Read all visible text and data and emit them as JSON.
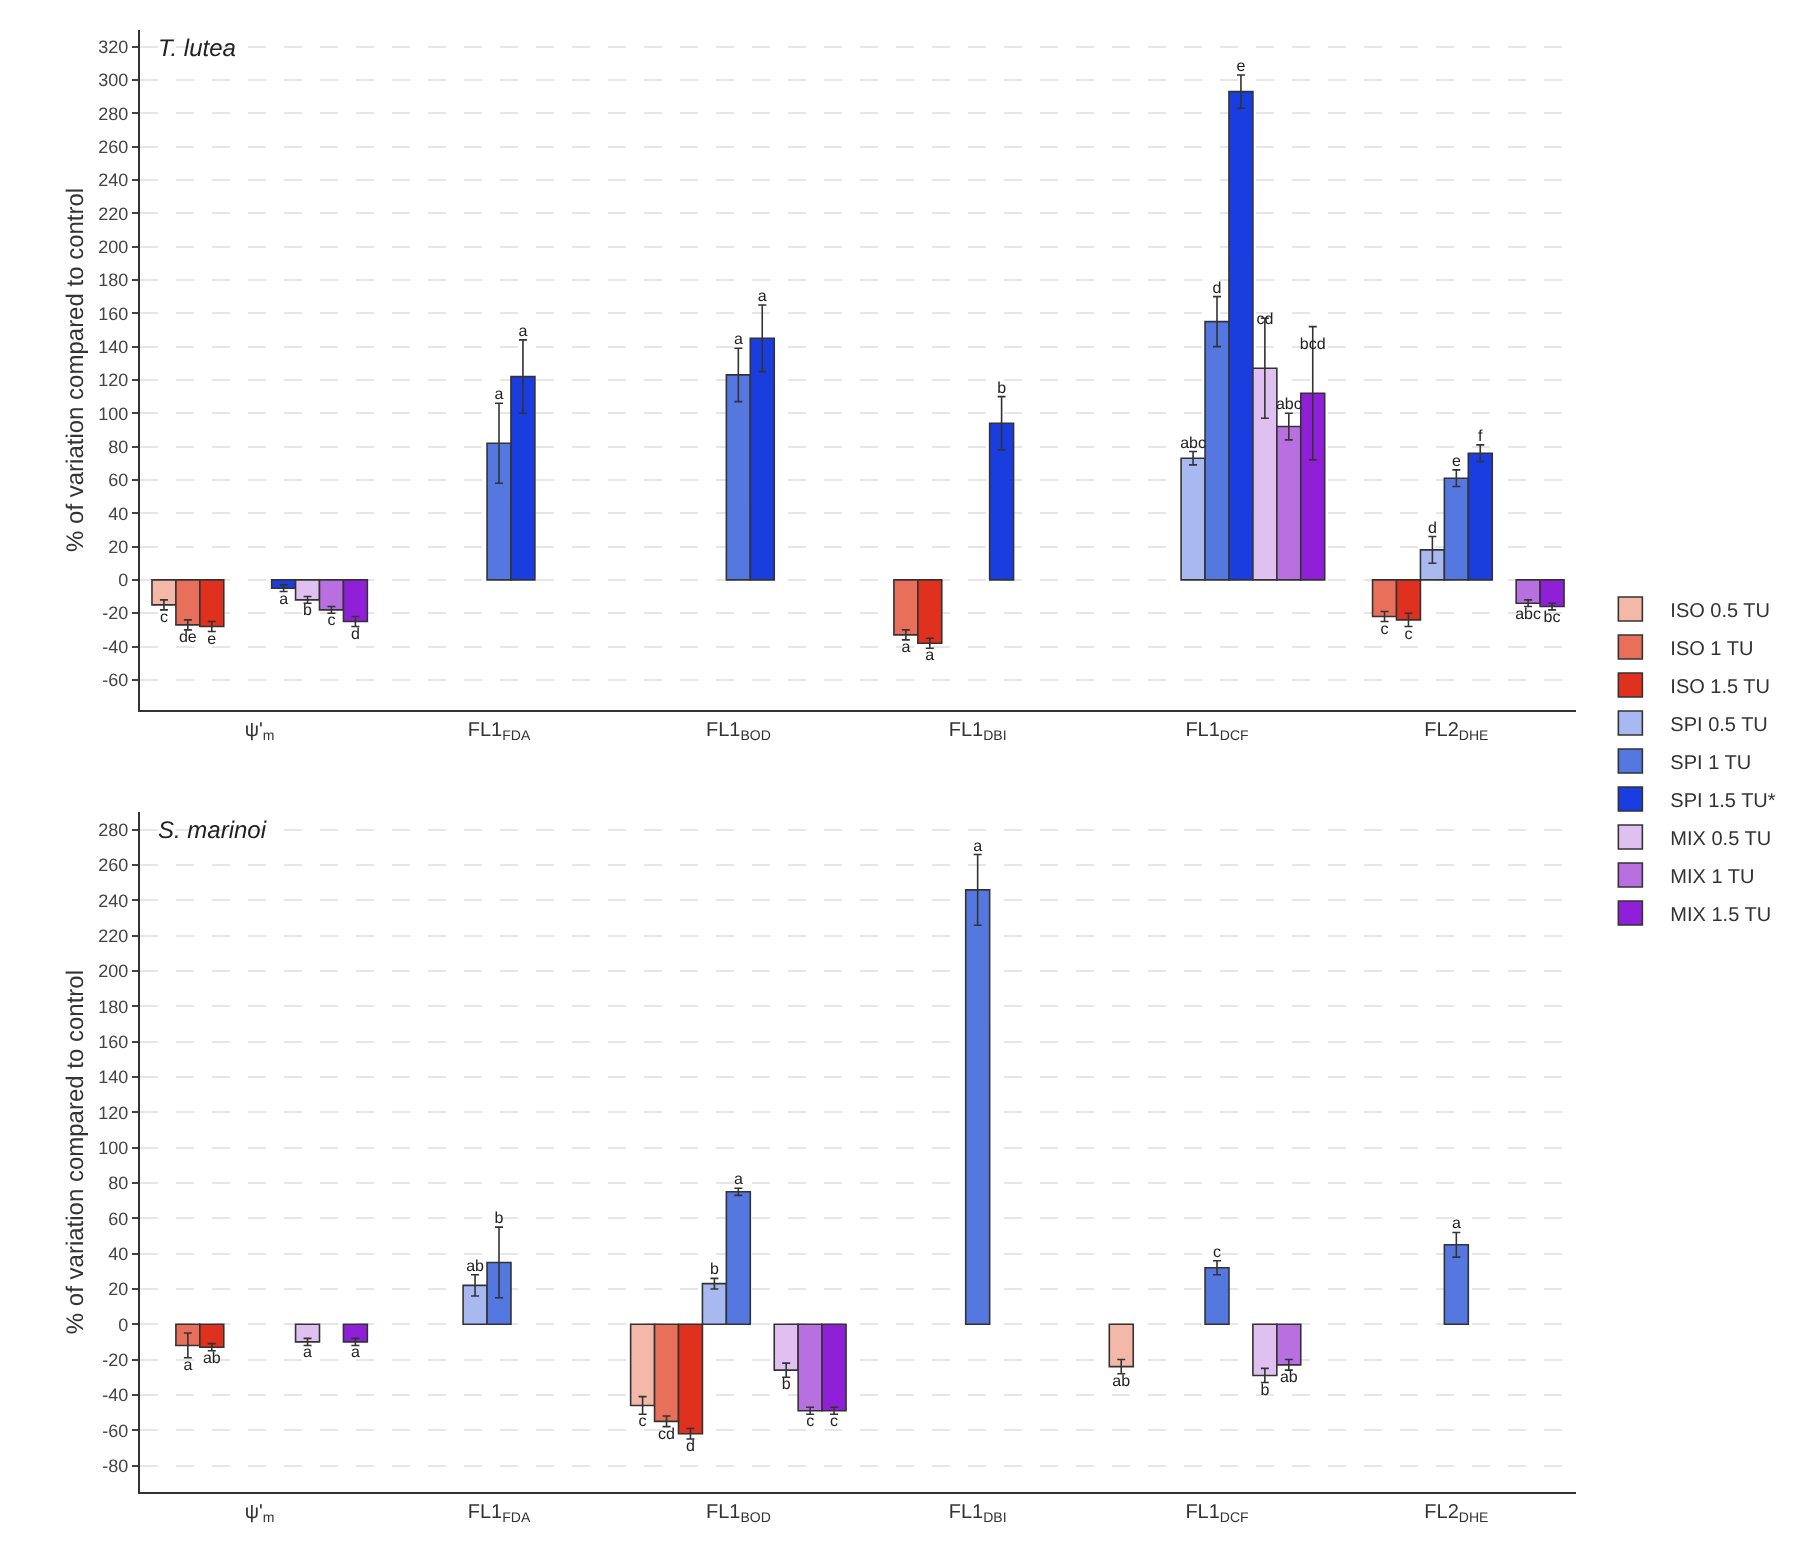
{
  "chart_data": [
    {
      "type": "bar",
      "title": "T. lutea",
      "ylabel": "% of variation compared to control",
      "categories": [
        "ψ'$_{m}$",
        "FL1$_{FDA}$",
        "FL1$_{BOD}$",
        "FL1$_{DBI}$",
        "FL1$_{DCF}$",
        "FL2$_{DHE}$"
      ],
      "ylim": [
        -78,
        330
      ],
      "yticks": [
        -60,
        -40,
        -20,
        0,
        20,
        40,
        60,
        80,
        100,
        120,
        140,
        160,
        180,
        200,
        220,
        240,
        260,
        280,
        300,
        320
      ],
      "grid": "y",
      "legend": "right",
      "series": [
        {
          "name": "ISO 0.5 TU",
          "color": "#f4b8a8",
          "values": [
            -15,
            null,
            null,
            null,
            null,
            null
          ],
          "errors": [
            3,
            null,
            null,
            null,
            null,
            null
          ],
          "value_labels": [
            "c",
            null,
            null,
            null,
            null,
            null
          ]
        },
        {
          "name": "ISO 1 TU",
          "color": "#e8705a",
          "values": [
            -27,
            null,
            null,
            -33,
            null,
            -22
          ],
          "errors": [
            3,
            null,
            null,
            3,
            null,
            3
          ],
          "value_labels": [
            "de",
            null,
            null,
            "a",
            null,
            "c"
          ]
        },
        {
          "name": "ISO 1.5 TU",
          "color": "#e0301e",
          "values": [
            -28,
            null,
            null,
            -38,
            null,
            -24
          ],
          "errors": [
            3,
            null,
            null,
            3,
            null,
            4
          ],
          "value_labels": [
            "e",
            null,
            null,
            "a",
            null,
            "c"
          ]
        },
        {
          "name": "SPI 0.5 TU",
          "color": "#a8b8f0",
          "values": [
            null,
            null,
            null,
            null,
            73,
            18
          ],
          "errors": [
            null,
            null,
            null,
            null,
            4,
            8
          ],
          "value_labels": [
            null,
            null,
            null,
            null,
            "abc",
            "d"
          ]
        },
        {
          "name": "SPI 1 TU",
          "color": "#5577e0",
          "values": [
            null,
            82,
            123,
            null,
            155,
            61
          ],
          "errors": [
            null,
            24,
            16,
            null,
            15,
            5
          ],
          "value_labels": [
            null,
            "a",
            "a",
            null,
            "d",
            "e"
          ]
        },
        {
          "name": "SPI 1.5 TU*",
          "color": "#1a3de0",
          "values": [
            -5,
            122,
            145,
            94,
            293,
            76
          ],
          "errors": [
            2,
            22,
            20,
            16,
            10,
            5
          ],
          "value_labels": [
            "a",
            "a",
            "a",
            "b",
            "e",
            "f"
          ]
        },
        {
          "name": "MIX 0.5 TU",
          "color": "#e0c0f0",
          "values": [
            -12,
            null,
            null,
            null,
            127,
            null
          ],
          "errors": [
            2,
            null,
            null,
            null,
            30,
            null
          ],
          "value_labels": [
            "b",
            null,
            null,
            null,
            "cd",
            null
          ]
        },
        {
          "name": "MIX 1 TU",
          "color": "#b870e0",
          "values": [
            -18,
            null,
            null,
            null,
            92,
            -14
          ],
          "errors": [
            2,
            null,
            null,
            null,
            8,
            2
          ],
          "value_labels": [
            "c",
            null,
            null,
            null,
            "abc",
            "abc"
          ]
        },
        {
          "name": "MIX 1.5 TU",
          "color": "#9020d8",
          "values": [
            -25,
            null,
            null,
            null,
            112,
            -16
          ],
          "errors": [
            3,
            null,
            null,
            null,
            40,
            2
          ],
          "value_labels": [
            "d",
            null,
            null,
            null,
            "bcd",
            "bc"
          ]
        }
      ]
    },
    {
      "type": "bar",
      "title": "S. marinoi",
      "ylabel": "% of variation compared to control",
      "categories": [
        "ψ'$_{m}$",
        "FL1$_{FDA}$",
        "FL1$_{BOD}$",
        "FL1$_{DBI}$",
        "FL1$_{DCF}$",
        "FL2$_{DHE}$"
      ],
      "ylim": [
        -95,
        290
      ],
      "yticks": [
        -80,
        -60,
        -40,
        -20,
        0,
        20,
        40,
        60,
        80,
        100,
        120,
        140,
        160,
        180,
        200,
        220,
        240,
        260,
        280
      ],
      "grid": "y",
      "legend": false,
      "series": [
        {
          "color": "#f4b8a8",
          "values": [
            null,
            null,
            -46,
            null,
            -24,
            null
          ],
          "errors": [
            null,
            null,
            5,
            null,
            4,
            null
          ],
          "value_labels": [
            null,
            null,
            "c",
            null,
            "ab",
            null
          ]
        },
        {
          "color": "#e8705a",
          "values": [
            -12,
            null,
            -55,
            null,
            null,
            null
          ],
          "errors": [
            7,
            null,
            3,
            null,
            null,
            null
          ],
          "value_labels": [
            "a",
            null,
            "cd",
            null,
            null,
            null
          ]
        },
        {
          "color": "#e0301e",
          "values": [
            -13,
            null,
            -62,
            null,
            null,
            null
          ],
          "errors": [
            2,
            null,
            3,
            null,
            null,
            null
          ],
          "value_labels": [
            "ab",
            null,
            "d",
            null,
            null,
            null
          ]
        },
        {
          "color": "#a8b8f0",
          "values": [
            null,
            22,
            23,
            null,
            null,
            null
          ],
          "errors": [
            null,
            6,
            3,
            null,
            null,
            null
          ],
          "value_labels": [
            null,
            "ab",
            "b",
            null,
            null,
            null
          ]
        },
        {
          "color": "#5577e0",
          "values": [
            null,
            35,
            75,
            246,
            32,
            45
          ],
          "errors": [
            null,
            20,
            2,
            20,
            4,
            7
          ],
          "value_labels": [
            null,
            "b",
            "a",
            "a",
            "c",
            "a"
          ]
        },
        {
          "color": "#1a3de0",
          "values": [
            null,
            null,
            null,
            null,
            null,
            null
          ],
          "errors": [
            null,
            null,
            null,
            null,
            null,
            null
          ],
          "value_labels": [
            null,
            null,
            null,
            null,
            null,
            null
          ]
        },
        {
          "color": "#e0c0f0",
          "values": [
            -10,
            null,
            -26,
            null,
            -29,
            null
          ],
          "errors": [
            2,
            null,
            4,
            null,
            4,
            null
          ],
          "value_labels": [
            "a",
            null,
            "b",
            null,
            "b",
            null
          ]
        },
        {
          "color": "#b870e0",
          "values": [
            null,
            null,
            -49,
            null,
            -23,
            null
          ],
          "errors": [
            null,
            null,
            2,
            null,
            3,
            null
          ],
          "value_labels": [
            null,
            null,
            "c",
            null,
            "ab",
            null
          ]
        },
        {
          "color": "#9020d8",
          "values": [
            -10,
            null,
            -49,
            null,
            null,
            null
          ],
          "errors": [
            2,
            null,
            2,
            null,
            null,
            null
          ],
          "value_labels": [
            "a",
            null,
            "c",
            null,
            null,
            null
          ]
        }
      ]
    }
  ]
}
